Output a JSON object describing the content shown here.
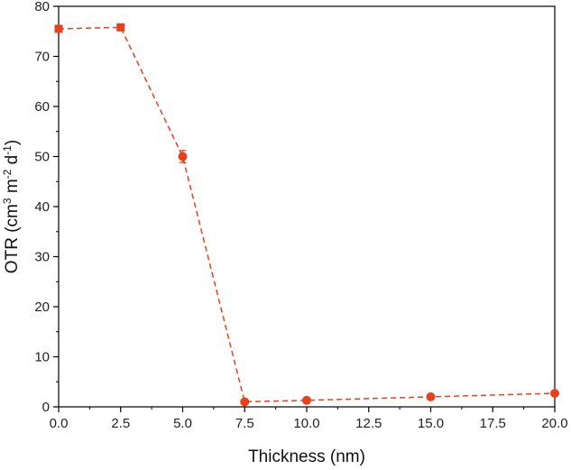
{
  "chart_data": {
    "type": "line",
    "xlabel": "Thickness (nm)",
    "ylabel": {
      "prefix": "OTR (cm",
      "sup1": "3",
      "mid1": " m",
      "sup2": "-2",
      "mid2": " d",
      "sup3": "-1",
      "suffix": ")"
    },
    "xlim": [
      0,
      20
    ],
    "ylim": [
      0,
      80
    ],
    "xticks": [
      "0.0",
      "2.5",
      "5.0",
      "7.5",
      "10.0",
      "12.5",
      "15.0",
      "17.5",
      "20.0"
    ],
    "yticks": [
      "0",
      "10",
      "20",
      "30",
      "40",
      "50",
      "60",
      "70",
      "80"
    ],
    "grid": false,
    "line_style": "dashed",
    "series": [
      {
        "color": "#e8401c",
        "points": [
          {
            "x": 0.0,
            "y": 75.5,
            "err": 0.6,
            "marker": "square"
          },
          {
            "x": 2.5,
            "y": 75.8,
            "err": 0.6,
            "marker": "square"
          },
          {
            "x": 5.0,
            "y": 50.0,
            "err": 1.2,
            "marker": "circle"
          },
          {
            "x": 7.5,
            "y": 1.0,
            "err": 0.3,
            "marker": "circle"
          },
          {
            "x": 10.0,
            "y": 1.3,
            "err": 0.3,
            "marker": "circle"
          },
          {
            "x": 15.0,
            "y": 2.0,
            "err": 0.3,
            "marker": "circle"
          },
          {
            "x": 20.0,
            "y": 2.7,
            "err": 0.3,
            "marker": "circle"
          }
        ]
      }
    ]
  }
}
